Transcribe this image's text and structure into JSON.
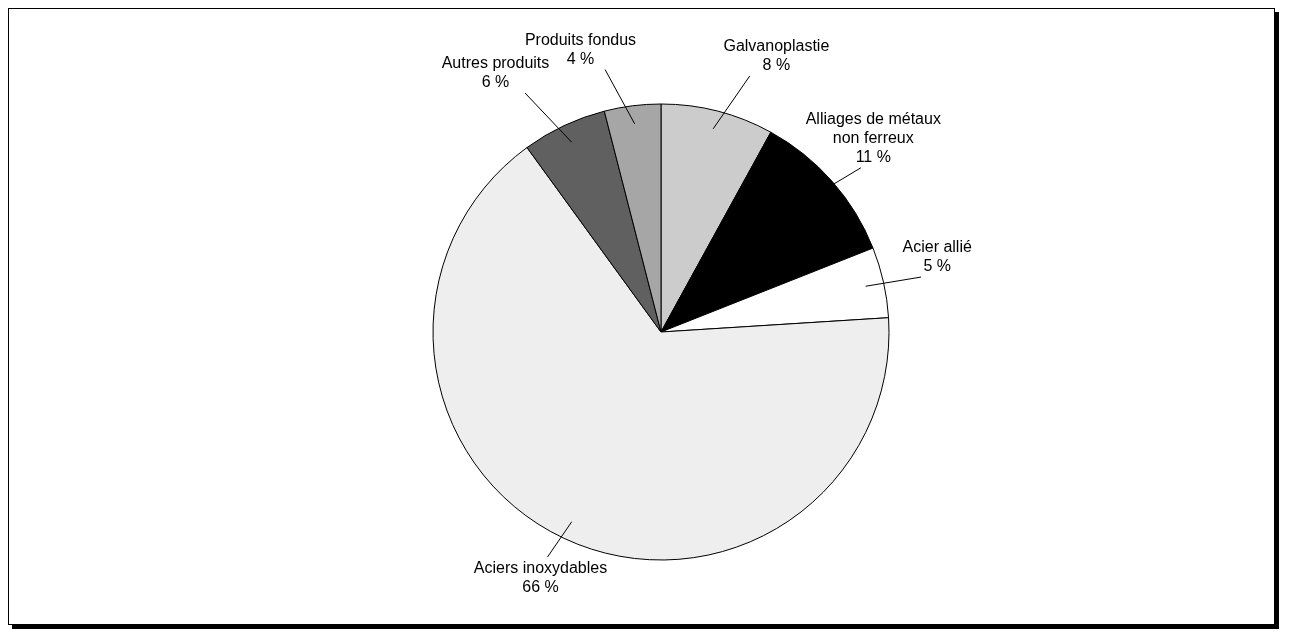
{
  "chart_data": {
    "type": "pie",
    "categories": [
      "Galvanoplastie",
      "Alliages de métaux non ferreux",
      "Acier allié",
      "Aciers inoxydables",
      "Autres produits",
      "Produits fondus"
    ],
    "values": [
      8,
      11,
      5,
      66,
      6,
      4
    ],
    "colors": [
      "#cccccc",
      "#000000",
      "#ffffff",
      "#eeeeee",
      "#606060",
      "#a6a6a6"
    ],
    "value_labels": [
      "8 %",
      "11 %",
      "5 %",
      "66 %",
      "6 %",
      "4 %"
    ]
  }
}
